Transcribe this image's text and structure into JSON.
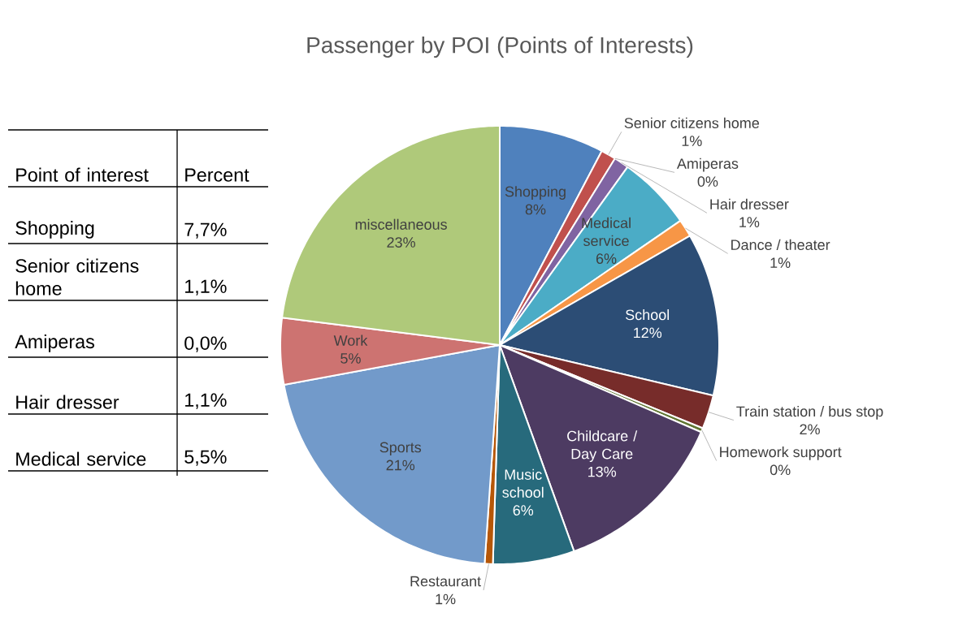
{
  "chart_data": {
    "type": "pie",
    "title": "Passenger by POI (Points of Interests)",
    "categories": [
      "Shopping",
      "Senior citizens home",
      "Amiperas",
      "Hair dresser",
      "Medical service",
      "Dance / theater",
      "School",
      "Train station / bus stop",
      "Homework support",
      "Childcare / Day Care",
      "Music school",
      "Restaurant",
      "Sports",
      "Work",
      "miscellaneous"
    ],
    "values": [
      7.7,
      1.1,
      0.0,
      1.1,
      5.5,
      1.3,
      12,
      2.5,
      0.3,
      13,
      6,
      0.6,
      21,
      4.9,
      23
    ],
    "value_labels": [
      "8%",
      "1%",
      "0%",
      "1%",
      "6%",
      "1%",
      "12%",
      "2%",
      "0%",
      "13%",
      "6%",
      "1%",
      "21%",
      "5%",
      "23%"
    ],
    "colors": [
      "#4f81bd",
      "#c0504d",
      "#9bbb59",
      "#8064a2",
      "#4bacc6",
      "#f79646",
      "#2c4d75",
      "#772c2a",
      "#5f7530",
      "#4d3b62",
      "#276a7c",
      "#b65708",
      "#729aca",
      "#cd7371",
      "#afc97a"
    ],
    "annotations": [
      "Point of interest",
      "Percent",
      "Shopping",
      "7,7%",
      "Senior citizens home",
      "1,1%",
      "Amiperas",
      "0,0%",
      "Hair dresser",
      "1,1%",
      "Medical service",
      "5,5%"
    ]
  }
}
